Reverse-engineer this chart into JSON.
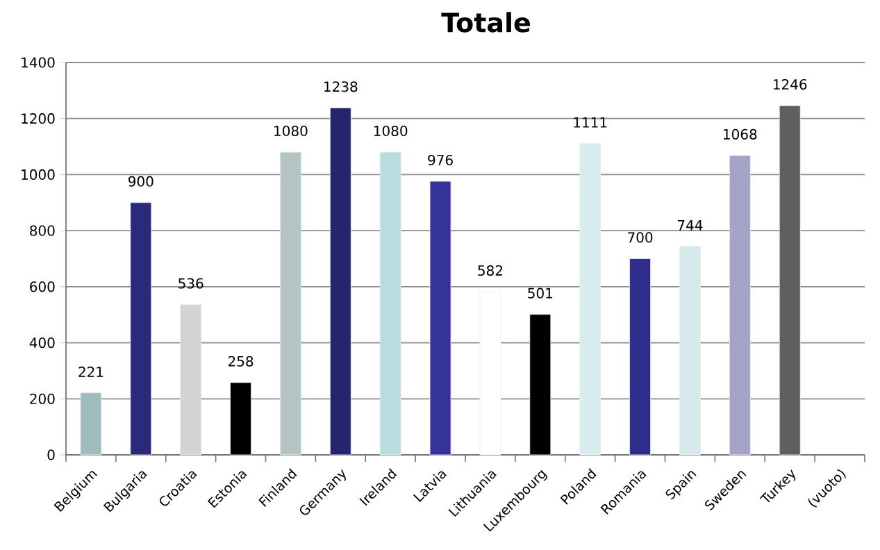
{
  "chart_data": {
    "type": "bar",
    "title": "Totale",
    "categories": [
      "Belgium",
      "Bulgaria",
      "Croatia",
      "Estonia",
      "Finland",
      "Germany",
      "Ireland",
      "Latvia",
      "Lithuania",
      "Luxembourg",
      "Poland",
      "Romania",
      "Spain",
      "Sweden",
      "Turkey",
      "(vuoto)"
    ],
    "values": [
      221,
      900,
      536,
      258,
      1080,
      1238,
      1080,
      976,
      582,
      501,
      1111,
      700,
      744,
      1068,
      1246,
      null
    ],
    "colors": [
      "#9dbcbd",
      "#2b2a7a",
      "#d3d3d3",
      "#000000",
      "#b4c4c4",
      "#25246e",
      "#b8dde0",
      "#35329a",
      "#ffffff",
      "#000000",
      "#d9edf0",
      "#2e2d8c",
      "#d6eaec",
      "#a4a4c8",
      "#5f5f5f",
      "#ffffff"
    ],
    "ylim": [
      0,
      1400
    ],
    "yticks": [
      0,
      200,
      400,
      600,
      800,
      1000,
      1200,
      1400
    ],
    "grid": "y",
    "data_labels": true
  }
}
